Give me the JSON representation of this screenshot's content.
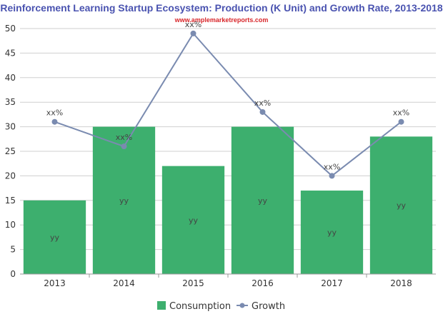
{
  "chart_data": {
    "type": "bar",
    "title": "Reinforcement Learning  Startup Ecosystem: Production (K Unit) and Growth Rate, 2013-2018",
    "subtitle": "www.amplemarketreports.com",
    "categories": [
      "2013",
      "2014",
      "2015",
      "2016",
      "2017",
      "2018"
    ],
    "ylim": [
      0,
      50
    ],
    "yticks": [
      "0",
      "5",
      "10",
      "15",
      "20",
      "25",
      "30",
      "35",
      "40",
      "45",
      "50"
    ],
    "grid": true,
    "legend_position": "bottom",
    "series": [
      {
        "name": "Consumption",
        "type": "bar",
        "color": "#3daf6e",
        "values": [
          15,
          30,
          22,
          30,
          17,
          28
        ],
        "labels": [
          "yy",
          "yy",
          "yy",
          "yy",
          "yy",
          "yy"
        ]
      },
      {
        "name": "Growth",
        "type": "line",
        "color": "#7a8bb0",
        "values": [
          31,
          26,
          49,
          33,
          20,
          31
        ],
        "labels": [
          "xx%",
          "xx%",
          "xx%",
          "xx%",
          "xx%",
          "xx%"
        ]
      }
    ]
  }
}
